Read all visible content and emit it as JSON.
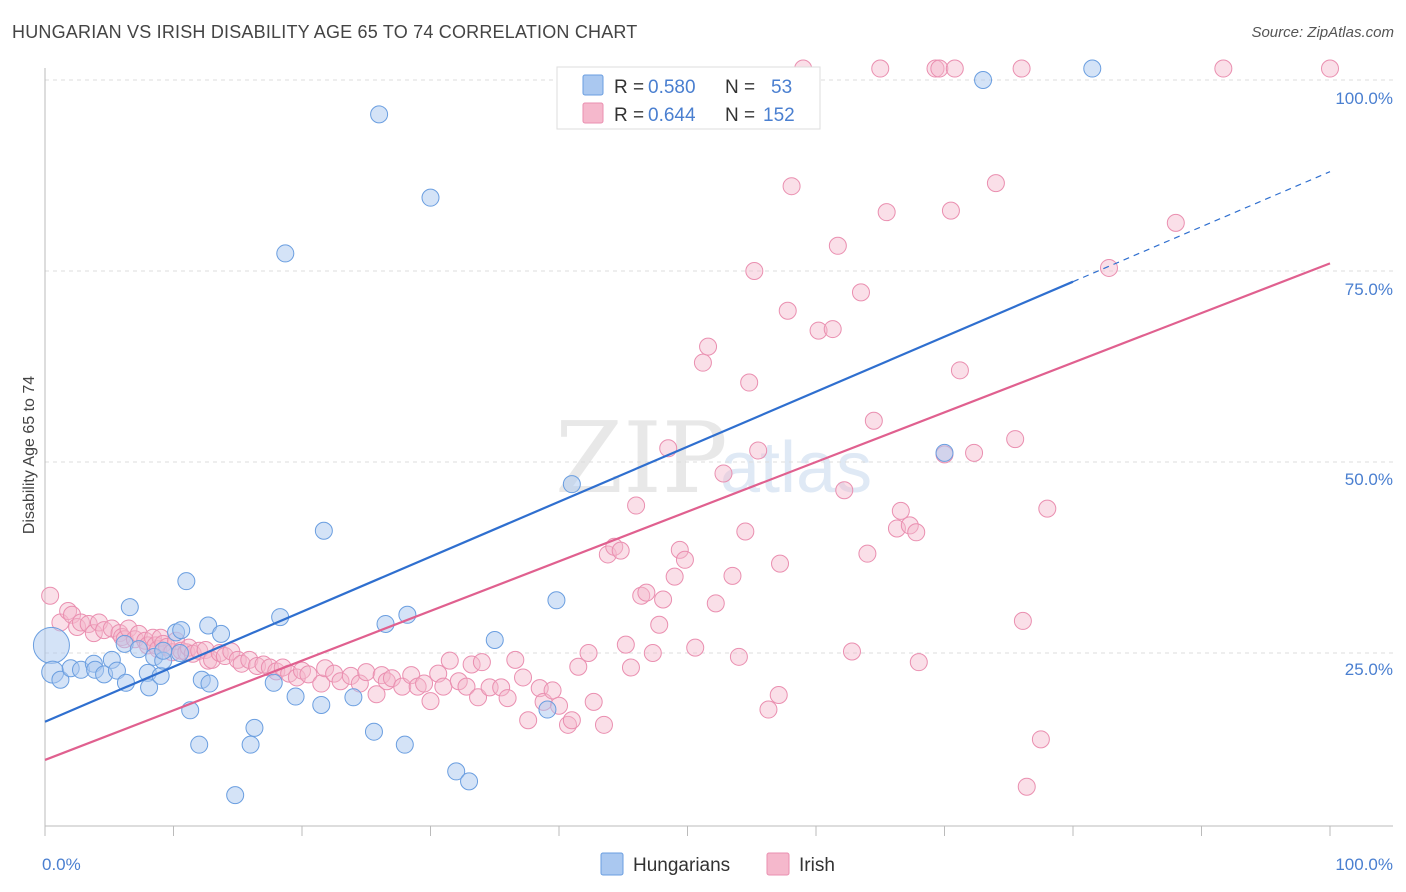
{
  "title": "HUNGARIAN VS IRISH DISABILITY AGE 65 TO 74 CORRELATION CHART",
  "source": "Source: ZipAtlas.com",
  "watermark": {
    "zip": "ZIP",
    "atlas": "atlas"
  },
  "legend": {
    "r_label": "R =",
    "n_label": "N =",
    "hungarians": {
      "r": "0.580",
      "n": "53"
    },
    "irish": {
      "r": "0.644",
      "n": "152"
    }
  },
  "colors": {
    "hungarians_fill": "#aac8f0",
    "hungarians_stroke": "#6a9ee0",
    "hungarians_line": "#2f6fcf",
    "irish_fill": "#f5b8cc",
    "irish_stroke": "#ea8fb0",
    "irish_line": "#e0608f",
    "tick_label": "#4a7fd0"
  },
  "chart_data": {
    "type": "scatter",
    "title": "HUNGARIAN VS IRISH DISABILITY AGE 65 TO 74 CORRELATION CHART",
    "xlabel": "",
    "ylabel": "Disability Age 65 to 74",
    "xlim": [
      0,
      100
    ],
    "ylim": [
      0,
      100
    ],
    "x_ticks": [
      "0.0%",
      "100.0%"
    ],
    "y_ticks": [
      "25.0%",
      "50.0%",
      "75.0%",
      "100.0%"
    ],
    "grid": true,
    "legend_position": "top-center",
    "series": [
      {
        "name": "Hungarians",
        "r": 0.58,
        "n": 53,
        "trend": {
          "x0": 0,
          "y0": 16,
          "x1": 100,
          "y1": 88
        },
        "points": [
          [
            0.5,
            26.0,
            3
          ],
          [
            0.6,
            22.5,
            2
          ],
          [
            1.2,
            21.5,
            1
          ],
          [
            2.0,
            23.0,
            1
          ],
          [
            2.8,
            22.8,
            1
          ],
          [
            3.8,
            23.6,
            1
          ],
          [
            3.9,
            22.8,
            1
          ],
          [
            4.6,
            22.2,
            1
          ],
          [
            5.2,
            24.1,
            1
          ],
          [
            5.6,
            22.7,
            1
          ],
          [
            6.2,
            26.2,
            1
          ],
          [
            6.3,
            21.1,
            1
          ],
          [
            6.6,
            31.0,
            1
          ],
          [
            7.3,
            25.5,
            1
          ],
          [
            8.0,
            22.4,
            1
          ],
          [
            8.1,
            20.5,
            1
          ],
          [
            8.5,
            24.5,
            1
          ],
          [
            9.0,
            22.0,
            1
          ],
          [
            9.2,
            24.0,
            1
          ],
          [
            9.2,
            25.3,
            1
          ],
          [
            10.2,
            27.7,
            1
          ],
          [
            10.5,
            25.0,
            1
          ],
          [
            10.6,
            28.0,
            1
          ],
          [
            11.0,
            34.4,
            1
          ],
          [
            11.3,
            17.5,
            1
          ],
          [
            12.0,
            13.0,
            1
          ],
          [
            12.2,
            21.5,
            1
          ],
          [
            12.7,
            28.6,
            1
          ],
          [
            12.8,
            21.0,
            1
          ],
          [
            13.7,
            27.5,
            1
          ],
          [
            14.8,
            6.4,
            1
          ],
          [
            16.0,
            13.0,
            1
          ],
          [
            16.3,
            15.2,
            1
          ],
          [
            17.8,
            21.1,
            1
          ],
          [
            18.3,
            29.7,
            1
          ],
          [
            18.7,
            77.3,
            1
          ],
          [
            19.5,
            19.3,
            1
          ],
          [
            21.5,
            18.2,
            1
          ],
          [
            21.7,
            41.0,
            1
          ],
          [
            24.0,
            19.2,
            1
          ],
          [
            25.6,
            14.7,
            1
          ],
          [
            26.0,
            95.5,
            1
          ],
          [
            26.5,
            28.8,
            1
          ],
          [
            28.0,
            13.0,
            1
          ],
          [
            28.2,
            30.0,
            1
          ],
          [
            30.0,
            84.6,
            1
          ],
          [
            32.0,
            9.5,
            1
          ],
          [
            33.0,
            8.2,
            1
          ],
          [
            35.0,
            26.7,
            1
          ],
          [
            39.1,
            17.6,
            1
          ],
          [
            39.8,
            31.9,
            1
          ],
          [
            41.0,
            47.1,
            1
          ],
          [
            70.0,
            51.2,
            1
          ],
          [
            73.0,
            100.0,
            1
          ],
          [
            81.5,
            101.5,
            1
          ]
        ]
      },
      {
        "name": "Irish",
        "r": 0.644,
        "n": 152,
        "trend": {
          "x0": 0,
          "y0": 11,
          "x1": 100,
          "y1": 76
        },
        "points": [
          [
            0.4,
            32.5
          ],
          [
            1.2,
            29.0
          ],
          [
            1.8,
            30.5
          ],
          [
            2.1,
            30.0
          ],
          [
            2.5,
            28.4
          ],
          [
            2.8,
            29.0
          ],
          [
            3.4,
            28.8
          ],
          [
            3.8,
            27.6
          ],
          [
            4.2,
            29.0
          ],
          [
            4.6,
            28.0
          ],
          [
            5.2,
            28.2
          ],
          [
            5.8,
            27.6
          ],
          [
            6.0,
            27.1
          ],
          [
            6.2,
            26.8
          ],
          [
            6.5,
            28.2
          ],
          [
            7.0,
            26.8
          ],
          [
            7.3,
            27.5
          ],
          [
            7.8,
            26.6
          ],
          [
            8.0,
            26.0
          ],
          [
            8.4,
            27.0
          ],
          [
            8.6,
            26.0
          ],
          [
            8.8,
            25.5
          ],
          [
            9.0,
            27.0
          ],
          [
            9.2,
            26.2
          ],
          [
            9.5,
            25.8
          ],
          [
            9.9,
            25.1
          ],
          [
            10.2,
            26.6
          ],
          [
            10.6,
            25.3
          ],
          [
            11.0,
            25.1
          ],
          [
            11.2,
            25.7
          ],
          [
            11.5,
            24.9
          ],
          [
            12.0,
            25.3
          ],
          [
            12.5,
            25.4
          ],
          [
            12.7,
            24.0
          ],
          [
            13.0,
            24.1
          ],
          [
            13.6,
            25.0
          ],
          [
            14.0,
            24.6
          ],
          [
            14.5,
            25.2
          ],
          [
            15.0,
            24.1
          ],
          [
            15.3,
            23.6
          ],
          [
            15.9,
            24.1
          ],
          [
            16.5,
            23.3
          ],
          [
            17.0,
            23.5
          ],
          [
            17.5,
            23.1
          ],
          [
            18.0,
            22.6
          ],
          [
            18.5,
            23.1
          ],
          [
            19.0,
            22.3
          ],
          [
            19.6,
            21.8
          ],
          [
            20.0,
            22.7
          ],
          [
            20.5,
            22.2
          ],
          [
            21.5,
            21.0
          ],
          [
            21.8,
            23.0
          ],
          [
            22.5,
            22.3
          ],
          [
            23.0,
            21.3
          ],
          [
            23.8,
            22.0
          ],
          [
            24.5,
            21.0
          ],
          [
            25.0,
            22.5
          ],
          [
            25.8,
            19.6
          ],
          [
            26.2,
            22.1
          ],
          [
            26.6,
            21.3
          ],
          [
            27.0,
            21.7
          ],
          [
            27.8,
            20.6
          ],
          [
            28.5,
            22.1
          ],
          [
            29.0,
            20.6
          ],
          [
            29.5,
            21.0
          ],
          [
            30.0,
            18.7
          ],
          [
            30.6,
            22.3
          ],
          [
            31.0,
            20.6
          ],
          [
            31.5,
            24.0
          ],
          [
            32.2,
            21.3
          ],
          [
            32.8,
            20.6
          ],
          [
            33.2,
            23.5
          ],
          [
            33.7,
            19.2
          ],
          [
            34.0,
            23.8
          ],
          [
            34.6,
            20.5
          ],
          [
            35.5,
            20.5
          ],
          [
            36.0,
            19.1
          ],
          [
            36.6,
            24.1
          ],
          [
            37.2,
            21.8
          ],
          [
            37.6,
            16.2
          ],
          [
            38.5,
            20.4
          ],
          [
            38.8,
            18.6
          ],
          [
            39.5,
            20.1
          ],
          [
            40.0,
            18.1
          ],
          [
            40.7,
            15.6
          ],
          [
            41.0,
            16.2
          ],
          [
            41.5,
            23.2
          ],
          [
            42.3,
            25.0
          ],
          [
            42.7,
            18.6
          ],
          [
            43.5,
            15.6
          ],
          [
            43.8,
            37.9
          ],
          [
            44.3,
            38.9
          ],
          [
            44.8,
            38.4
          ],
          [
            45.2,
            26.1
          ],
          [
            45.6,
            23.1
          ],
          [
            46.0,
            44.3
          ],
          [
            46.4,
            32.5
          ],
          [
            46.8,
            32.9
          ],
          [
            47.3,
            25.0
          ],
          [
            47.8,
            28.7
          ],
          [
            48.1,
            32.0
          ],
          [
            48.5,
            51.8
          ],
          [
            49.0,
            35.0
          ],
          [
            49.4,
            38.5
          ],
          [
            49.8,
            37.2
          ],
          [
            50.6,
            25.7
          ],
          [
            51.2,
            63.0
          ],
          [
            51.6,
            65.1
          ],
          [
            52.2,
            31.5
          ],
          [
            52.8,
            48.5
          ],
          [
            53.5,
            35.1
          ],
          [
            54.0,
            24.5
          ],
          [
            54.5,
            40.9
          ],
          [
            54.8,
            60.4
          ],
          [
            55.2,
            75.0
          ],
          [
            55.5,
            51.5
          ],
          [
            56.3,
            17.6
          ],
          [
            57.1,
            19.5
          ],
          [
            57.2,
            36.7
          ],
          [
            57.8,
            69.8
          ],
          [
            58.1,
            86.1
          ],
          [
            59.0,
            101.5
          ],
          [
            60.2,
            67.2
          ],
          [
            61.3,
            67.4
          ],
          [
            61.7,
            78.3
          ],
          [
            62.2,
            46.3
          ],
          [
            62.8,
            25.2
          ],
          [
            63.5,
            72.2
          ],
          [
            64.0,
            38.0
          ],
          [
            64.5,
            55.4
          ],
          [
            65.0,
            101.5
          ],
          [
            65.5,
            82.7
          ],
          [
            66.3,
            41.3
          ],
          [
            66.6,
            43.6
          ],
          [
            67.3,
            41.7
          ],
          [
            67.8,
            40.8
          ],
          [
            68.0,
            23.8
          ],
          [
            69.3,
            101.5
          ],
          [
            69.6,
            101.5
          ],
          [
            70.0,
            51.0
          ],
          [
            70.5,
            82.9
          ],
          [
            70.8,
            101.5
          ],
          [
            71.2,
            62.0
          ],
          [
            72.3,
            51.2
          ],
          [
            74.0,
            86.5
          ],
          [
            75.5,
            53.0
          ],
          [
            76.0,
            101.5
          ],
          [
            76.1,
            29.2
          ],
          [
            76.4,
            7.5
          ],
          [
            77.5,
            13.7
          ],
          [
            78.0,
            43.9
          ],
          [
            82.8,
            75.4
          ],
          [
            88.0,
            81.3
          ],
          [
            91.7,
            101.5
          ],
          [
            100.0,
            101.5
          ]
        ]
      }
    ]
  }
}
